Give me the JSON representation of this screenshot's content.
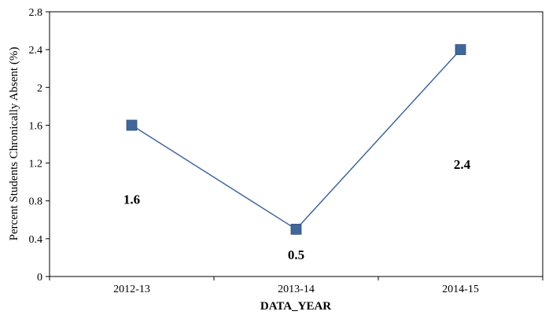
{
  "chart_data": {
    "type": "line",
    "title": "",
    "xlabel": "DATA_YEAR",
    "ylabel": "Percent Students Chronically Absent (%)",
    "categories": [
      "2012-13",
      "2013-14",
      "2014-15"
    ],
    "series": [
      {
        "values": [
          1.6,
          0.5,
          2.4
        ]
      }
    ],
    "data_labels": [
      "1.6",
      "0.5",
      "2.4"
    ],
    "ylim": [
      0,
      2.8
    ],
    "yticks": [
      0,
      0.4,
      0.8,
      1.2,
      1.6,
      2,
      2.4,
      2.8
    ],
    "ytick_labels": [
      "0",
      "0.4",
      "0.8",
      "1.2",
      "1.6",
      "2",
      "2.4",
      "2.8"
    ],
    "grid": false,
    "legend": "none",
    "line_color": "#41679A",
    "marker_color": "#41679A",
    "marker_shape": "square"
  }
}
